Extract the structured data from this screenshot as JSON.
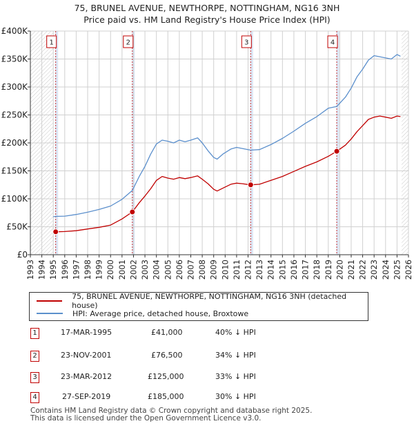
{
  "title_line1": "75, BRUNEL AVENUE, NEWTHORPE, NOTTINGHAM, NG16 3NH",
  "title_line2": "Price paid vs. HM Land Registry's House Price Index (HPI)",
  "legend": {
    "price_paid_label": "75, BRUNEL AVENUE, NEWTHORPE, NOTTINGHAM, NG16 3NH (detached house)",
    "hpi_label": "HPI: Average price, detached house, Broxtowe"
  },
  "sales": [
    {
      "num": "1",
      "date": "17-MAR-1995",
      "price": "£41,000",
      "hpi_diff": "40% ↓ HPI"
    },
    {
      "num": "2",
      "date": "23-NOV-2001",
      "price": "£76,500",
      "hpi_diff": "34% ↓ HPI"
    },
    {
      "num": "3",
      "date": "23-MAR-2012",
      "price": "£125,000",
      "hpi_diff": "33% ↓ HPI"
    },
    {
      "num": "4",
      "date": "27-SEP-2019",
      "price": "£185,000",
      "hpi_diff": "30% ↓ HPI"
    }
  ],
  "footer_line1": "Contains HM Land Registry data © Crown copyright and database right 2025.",
  "footer_line2": "This data is licensed under the Open Government Licence v3.0.",
  "colors": {
    "price_paid": "#c00000",
    "hpi": "#5b8fcc",
    "shade": "#dce6f5",
    "grid": "#d0d0d0"
  },
  "chart_data": {
    "type": "line",
    "title": "75, BRUNEL AVENUE, NEWTHORPE, NOTTINGHAM, NG16 3NH",
    "subtitle": "Price paid vs. HM Land Registry's House Price Index (HPI)",
    "xlabel": "",
    "ylabel": "",
    "xlim": [
      1993,
      2026
    ],
    "ylim": [
      0,
      400000
    ],
    "y_ticks": [
      0,
      50000,
      100000,
      150000,
      200000,
      250000,
      300000,
      350000,
      400000
    ],
    "y_tick_labels": [
      "£0",
      "£50K",
      "£100K",
      "£150K",
      "£200K",
      "£250K",
      "£300K",
      "£350K",
      "£400K"
    ],
    "x_ticks": [
      "1993",
      "1994",
      "1995",
      "1996",
      "1997",
      "1998",
      "1999",
      "2000",
      "2001",
      "2002",
      "2003",
      "2004",
      "2005",
      "2006",
      "2007",
      "2008",
      "2009",
      "2010",
      "2011",
      "2012",
      "2013",
      "2014",
      "2015",
      "2016",
      "2017",
      "2018",
      "2019",
      "2020",
      "2021",
      "2022",
      "2023",
      "2024",
      "2025",
      "2026"
    ],
    "data_start": 1995.0,
    "data_end": 2025.4,
    "series": [
      {
        "name": "75, BRUNEL AVENUE, NEWTHORPE, NOTTINGHAM, NG16 3NH (detached house)",
        "x": [
          1995.0,
          1995.21,
          1996.0,
          1997.0,
          1998.0,
          1999.0,
          2000.0,
          2001.0,
          2001.9,
          2002.5,
          2003.0,
          2003.5,
          2004.0,
          2004.5,
          2005.0,
          2005.5,
          2006.0,
          2006.5,
          2007.0,
          2007.6,
          2008.0,
          2008.5,
          2009.0,
          2009.3,
          2009.8,
          2010.5,
          2011.0,
          2011.5,
          2012.23,
          2013.0,
          2014.0,
          2015.0,
          2016.0,
          2017.0,
          2018.0,
          2019.0,
          2019.74,
          2020.5,
          2021.0,
          2021.5,
          2022.0,
          2022.5,
          2023.0,
          2023.5,
          2024.0,
          2024.5,
          2025.0,
          2025.3
        ],
        "values": [
          40000,
          41000,
          41500,
          43000,
          46000,
          49000,
          53000,
          64000,
          76500,
          93000,
          105000,
          118000,
          133000,
          140000,
          137000,
          135000,
          138000,
          136000,
          138000,
          141000,
          135000,
          127000,
          117000,
          114000,
          119000,
          126000,
          128000,
          127000,
          125000,
          126000,
          133000,
          140000,
          149000,
          158000,
          166000,
          176000,
          185000,
          196000,
          207000,
          220000,
          231000,
          242000,
          246000,
          248000,
          246000,
          244000,
          248000,
          247000
        ]
      },
      {
        "name": "HPI: Average price, detached house, Broxtowe",
        "x": [
          1995.0,
          1995.21,
          1996.0,
          1997.0,
          1998.0,
          1999.0,
          2000.0,
          2001.0,
          2001.9,
          2002.5,
          2003.0,
          2003.5,
          2004.0,
          2004.5,
          2005.0,
          2005.5,
          2006.0,
          2006.5,
          2007.0,
          2007.6,
          2008.0,
          2008.5,
          2009.0,
          2009.3,
          2009.8,
          2010.5,
          2011.0,
          2011.5,
          2012.23,
          2013.0,
          2014.0,
          2015.0,
          2016.0,
          2017.0,
          2018.0,
          2019.0,
          2019.74,
          2020.5,
          2021.0,
          2021.5,
          2022.0,
          2022.5,
          2023.0,
          2023.5,
          2024.0,
          2024.5,
          2025.0,
          2025.3
        ],
        "values": [
          68000,
          68500,
          69000,
          72000,
          76000,
          81000,
          87000,
          99000,
          115000,
          140000,
          158000,
          180000,
          198000,
          205000,
          203000,
          200000,
          205000,
          202000,
          205000,
          209000,
          200000,
          186000,
          174000,
          171000,
          180000,
          189000,
          192000,
          190000,
          187000,
          188000,
          197000,
          208000,
          221000,
          235000,
          247000,
          262000,
          265000,
          282000,
          298000,
          318000,
          332000,
          348000,
          356000,
          354000,
          352000,
          350000,
          358000,
          355000
        ]
      }
    ],
    "sale_markers": [
      {
        "num": "1",
        "x": 1995.21,
        "value": 41000
      },
      {
        "num": "2",
        "x": 2001.9,
        "value": 76500
      },
      {
        "num": "3",
        "x": 2012.23,
        "value": 125000
      },
      {
        "num": "4",
        "x": 2019.74,
        "value": 185000
      }
    ]
  }
}
